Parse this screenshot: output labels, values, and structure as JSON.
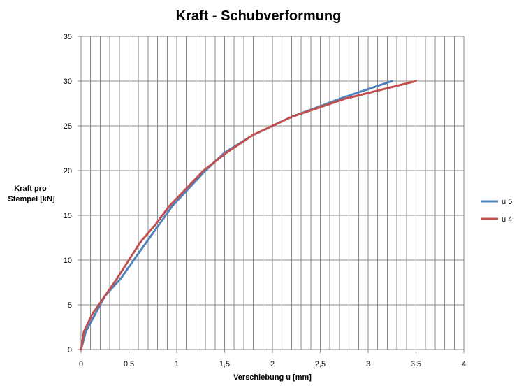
{
  "chart_data": {
    "type": "line",
    "title": "Kraft - Schubverformung",
    "xlabel": "Verschiebung u [mm]",
    "ylabel": [
      "Kraft pro",
      "Stempel [kN]"
    ],
    "xlim": [
      0,
      4
    ],
    "ylim": [
      0,
      35
    ],
    "x_ticks": [
      0,
      0.5,
      1,
      1.5,
      2,
      2.5,
      3,
      3.5,
      4
    ],
    "x_tick_labels": [
      "0",
      "0,5",
      "1",
      "1,5",
      "2",
      "2,5",
      "3",
      "3,5",
      "4"
    ],
    "y_ticks": [
      0,
      5,
      10,
      15,
      20,
      25,
      30,
      35
    ],
    "y_tick_labels": [
      "0",
      "5",
      "10",
      "15",
      "20",
      "25",
      "30",
      "35"
    ],
    "x_minor_step": 0.1,
    "grid": true,
    "legend_position": "right",
    "series": [
      {
        "name": "u 5",
        "color": "#4F81BD",
        "points": [
          [
            0,
            0
          ],
          [
            0.05,
            2
          ],
          [
            0.15,
            4
          ],
          [
            0.25,
            6
          ],
          [
            0.42,
            8
          ],
          [
            0.55,
            10
          ],
          [
            0.75,
            13
          ],
          [
            0.95,
            16
          ],
          [
            1.3,
            20
          ],
          [
            1.5,
            22
          ],
          [
            1.8,
            24
          ],
          [
            2.2,
            26
          ],
          [
            2.75,
            28.2
          ],
          [
            3.25,
            30
          ]
        ]
      },
      {
        "name": "u 4",
        "color": "#C0504D",
        "points": [
          [
            0,
            0
          ],
          [
            0.03,
            2
          ],
          [
            0.12,
            4
          ],
          [
            0.25,
            6
          ],
          [
            0.38,
            8
          ],
          [
            0.5,
            10
          ],
          [
            0.62,
            12
          ],
          [
            0.78,
            14
          ],
          [
            0.92,
            16
          ],
          [
            1.28,
            20
          ],
          [
            1.52,
            22
          ],
          [
            1.8,
            24
          ],
          [
            2.2,
            26
          ],
          [
            2.75,
            28
          ],
          [
            3.5,
            30
          ]
        ]
      }
    ]
  }
}
